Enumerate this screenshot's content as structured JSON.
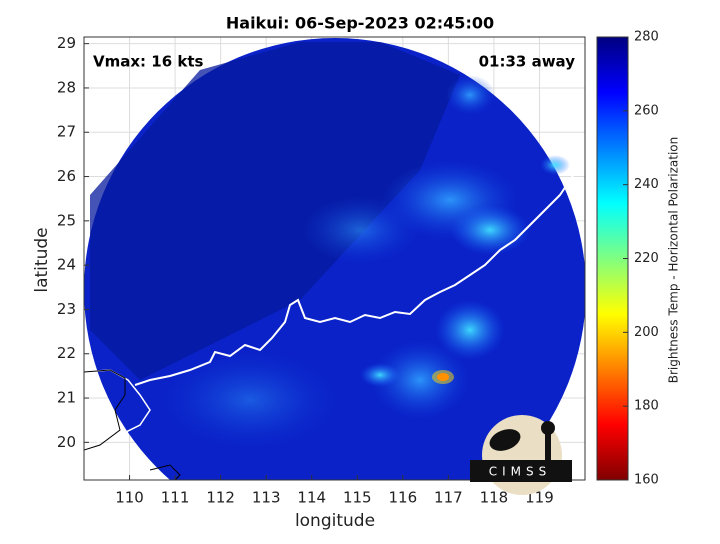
{
  "chart_data": {
    "type": "image",
    "title": "Haikui: 06-Sep-2023 02:45:00",
    "annotations": {
      "left": "Vmax: 16 kts",
      "right": "01:33 away"
    },
    "xlabel": "longitude",
    "ylabel": "latitude",
    "xlim": [
      109,
      120
    ],
    "ylim": [
      19.15,
      29.15
    ],
    "xticks": [
      110,
      111,
      112,
      113,
      114,
      115,
      116,
      117,
      118,
      119
    ],
    "yticks": [
      20,
      21,
      22,
      23,
      24,
      25,
      26,
      27,
      28,
      29
    ],
    "grid": true,
    "colorbar": {
      "label": "Brightness Temp - Horizontal Polarization",
      "lim": [
        160,
        280
      ],
      "ticks": [
        160,
        180,
        200,
        220,
        240,
        260,
        280
      ],
      "colors": [
        "#800000",
        "#ff0000",
        "#ff8000",
        "#ffff00",
        "#80ff80",
        "#00ffff",
        "#0080ff",
        "#0000ff",
        "#000080"
      ]
    },
    "logo_text": "CIMSS"
  }
}
